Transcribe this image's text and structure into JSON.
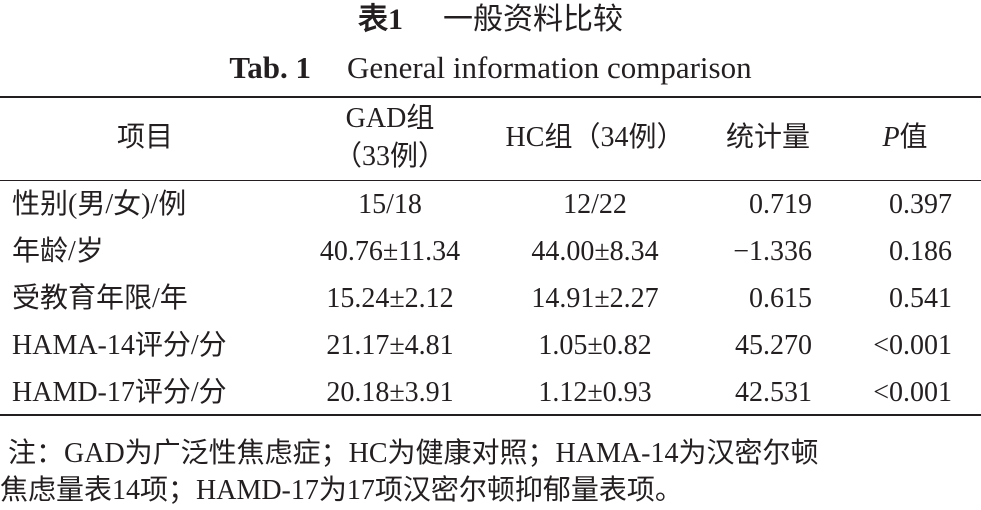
{
  "title": {
    "cn": {
      "label": "表1",
      "text": "一般资料比较"
    },
    "en": {
      "label": "Tab. 1",
      "text": "General information comparison"
    }
  },
  "table": {
    "header": [
      [
        "项目"
      ],
      [
        "GAD组",
        "（33例）"
      ],
      [
        "HC组（34例）"
      ],
      [
        "统计量"
      ],
      [
        {
          "italic": "P",
          "text": "值"
        }
      ]
    ],
    "rows": [
      [
        "性别(男/女)/例",
        "15/18",
        "12/22",
        "0.719",
        "0.397"
      ],
      [
        "年龄/岁",
        "40.76±11.34",
        "44.00±8.34",
        "−1.336",
        "0.186"
      ],
      [
        "受教育年限/年",
        "15.24±2.12",
        "14.91±2.27",
        "0.615",
        "0.541"
      ],
      [
        "HAMA-14评分/分",
        "21.17±4.81",
        "1.05±0.82",
        "45.270",
        "<0.001"
      ],
      [
        "HAMD-17评分/分",
        "20.18±3.91",
        "1.12±0.93",
        "42.531",
        "<0.001"
      ]
    ]
  },
  "note": [
    "注：GAD为广泛性焦虑症；HC为健康对照；HAMA-14为汉密尔顿",
    "焦虑量表14项；HAMD-17为17项汉密尔顿抑郁量表项。"
  ]
}
